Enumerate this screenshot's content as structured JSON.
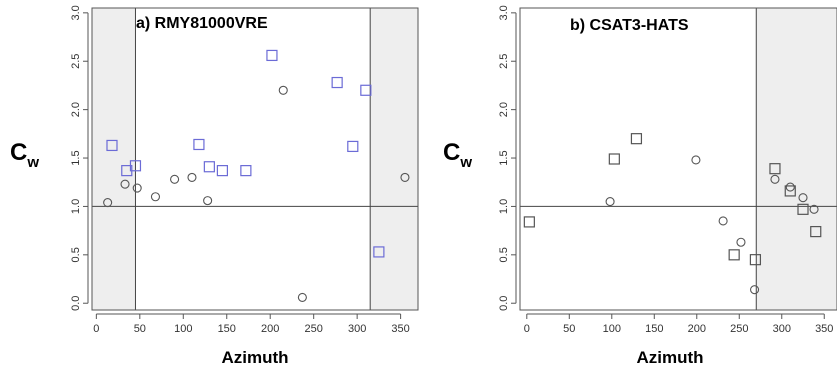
{
  "colors": {
    "shade": "#eeeeee",
    "frame": "#555555",
    "circle": "#555555",
    "square_a": "#6b6bd6",
    "square_b": "#555555"
  },
  "chart_data": [
    {
      "type": "scatter",
      "title": "a) RMY81000VRE",
      "xlabel": "Azimuth",
      "ylabel_main": "C",
      "ylabel_sub": "w",
      "xlim": [
        -5,
        370
      ],
      "ylim": [
        -0.07,
        3.05
      ],
      "xticks": [
        "0",
        "50",
        "100",
        "150",
        "200",
        "250",
        "300",
        "350"
      ],
      "yticks": [
        "0.0",
        "0.5",
        "1.0",
        "1.5",
        "2.0",
        "2.5",
        "3.0"
      ],
      "shaded_x_ranges": [
        [
          -5,
          45
        ],
        [
          315,
          370
        ]
      ],
      "vlines": [
        45,
        315
      ],
      "hline": 1.0,
      "series": [
        {
          "marker": "circle",
          "color": "#555555",
          "x": [
            13,
            33,
            47,
            68,
            90,
            110,
            128,
            215,
            237,
            355
          ],
          "y": [
            1.04,
            1.23,
            1.19,
            1.1,
            1.28,
            1.3,
            1.06,
            2.2,
            0.06,
            1.3
          ]
        },
        {
          "marker": "square",
          "color": "#6b6bd6",
          "x": [
            18,
            35,
            45,
            118,
            130,
            145,
            172,
            202,
            277,
            295,
            310,
            325
          ],
          "y": [
            1.63,
            1.37,
            1.42,
            1.64,
            1.41,
            1.37,
            1.37,
            2.56,
            2.28,
            1.62,
            2.2,
            0.53
          ]
        }
      ]
    },
    {
      "type": "scatter",
      "title": "b) CSAT3-HATS",
      "xlabel": "Azimuth",
      "ylabel_main": "C",
      "ylabel_sub": "w",
      "xlim": [
        -8,
        365
      ],
      "ylim": [
        -0.07,
        3.05
      ],
      "xticks": [
        "0",
        "50",
        "100",
        "150",
        "200",
        "250",
        "300",
        "350"
      ],
      "yticks": [
        "0.0",
        "0.5",
        "1.0",
        "1.5",
        "2.0",
        "2.5",
        "3.0"
      ],
      "shaded_x_ranges": [
        [
          270,
          365
        ]
      ],
      "vlines": [
        270
      ],
      "hline": 1.0,
      "series": [
        {
          "marker": "circle",
          "color": "#555555",
          "x": [
            98,
            199,
            231,
            252,
            268,
            292,
            310,
            325,
            338
          ],
          "y": [
            1.05,
            1.48,
            0.85,
            0.63,
            0.14,
            1.28,
            1.2,
            1.09,
            0.97
          ]
        },
        {
          "marker": "square",
          "color": "#555555",
          "x": [
            3,
            103,
            129,
            244,
            269,
            292,
            310,
            325,
            340
          ],
          "y": [
            0.84,
            1.49,
            1.7,
            0.5,
            0.45,
            1.39,
            1.16,
            0.97,
            0.74
          ]
        }
      ]
    }
  ]
}
